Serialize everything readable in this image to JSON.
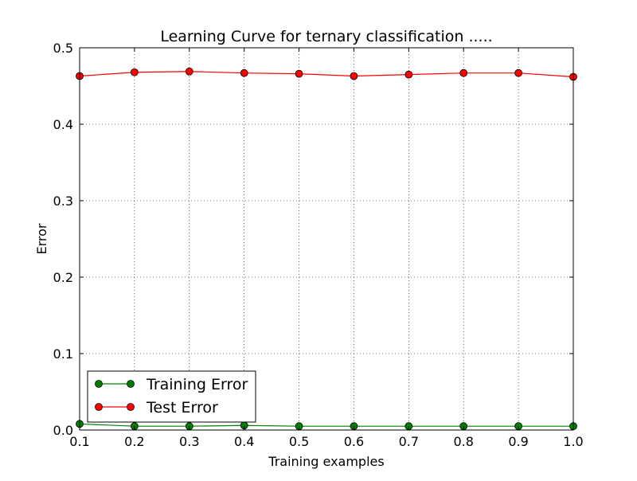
{
  "chart_data": {
    "type": "line",
    "title": "Learning Curve for ternary classification .....",
    "xlabel": "Training examples",
    "ylabel": "Error",
    "xlim": [
      0.1,
      1.0
    ],
    "ylim": [
      0.0,
      0.5
    ],
    "xticks": [
      "0.1",
      "0.2",
      "0.3",
      "0.4",
      "0.5",
      "0.6",
      "0.7",
      "0.8",
      "0.9",
      "1.0"
    ],
    "yticks": [
      "0.0",
      "0.1",
      "0.2",
      "0.3",
      "0.4",
      "0.5"
    ],
    "grid": true,
    "legend_position": "lower-left",
    "x": [
      0.1,
      0.2,
      0.3,
      0.4,
      0.5,
      0.6,
      0.7,
      0.8,
      0.9,
      1.0
    ],
    "series": [
      {
        "name": "Training Error",
        "color": "#008000",
        "marker": "circle",
        "values": [
          0.008,
          0.005,
          0.005,
          0.006,
          0.005,
          0.005,
          0.005,
          0.005,
          0.005,
          0.005
        ]
      },
      {
        "name": "Test Error",
        "color": "#ff0000",
        "marker": "circle",
        "values": [
          0.463,
          0.468,
          0.469,
          0.467,
          0.466,
          0.463,
          0.465,
          0.467,
          0.467,
          0.462
        ]
      }
    ]
  }
}
